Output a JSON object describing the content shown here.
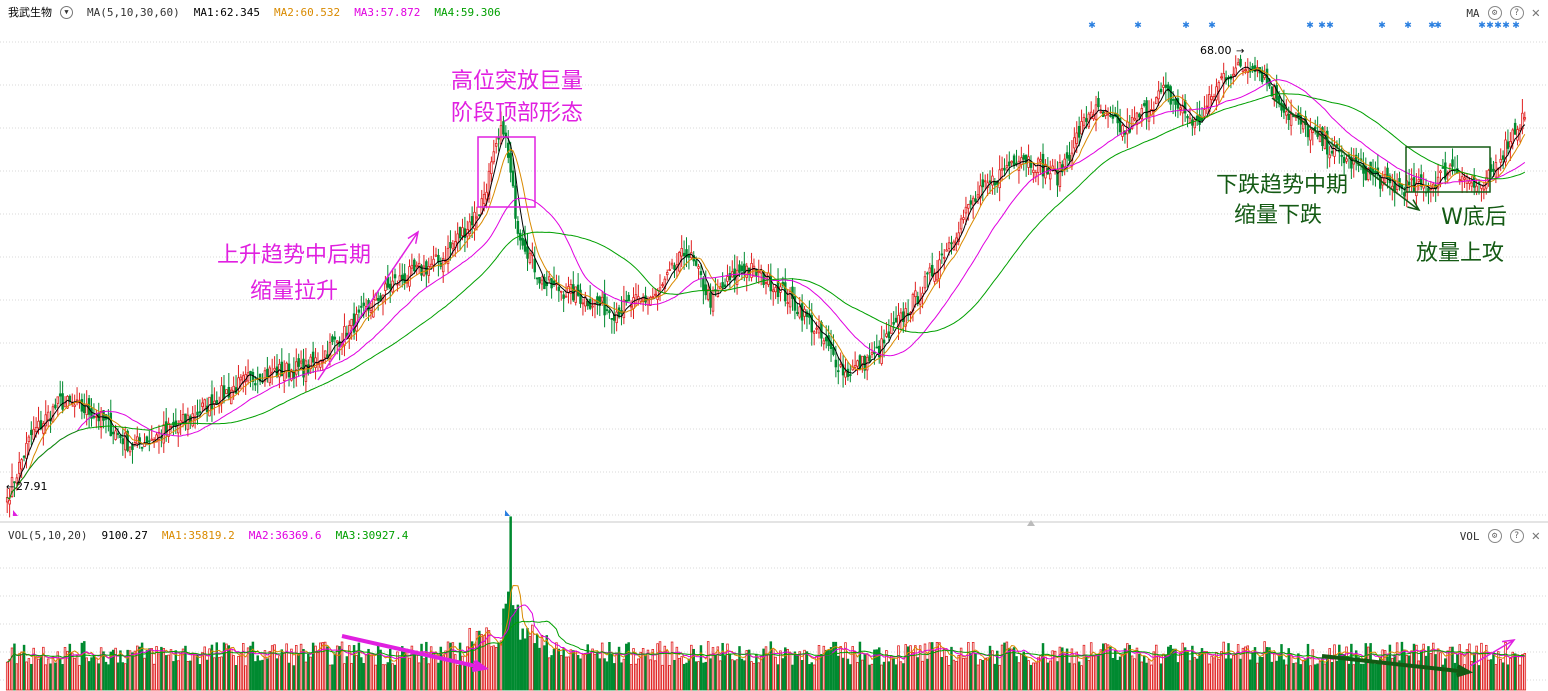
{
  "price_panel": {
    "stock_name": "我武生物",
    "indicator": "MA(5,10,30,60)",
    "ma_readings": [
      {
        "label": "MA1:62.345",
        "color": "#000000"
      },
      {
        "label": "MA2:60.532",
        "color": "#d98a00"
      },
      {
        "label": "MA3:57.872",
        "color": "#e000e0"
      },
      {
        "label": "MA4:59.306",
        "color": "#00a000"
      }
    ],
    "right_label": "MA",
    "high_marker": "68.00",
    "low_marker": "27.91"
  },
  "volume_panel": {
    "indicator": "VOL(5,10,20)",
    "current": "9100.27",
    "ma_readings": [
      {
        "label": "MA1:35819.2",
        "color": "#d98a00"
      },
      {
        "label": "MA2:36369.6",
        "color": "#e000e0"
      },
      {
        "label": "MA3:30927.4",
        "color": "#00a000"
      }
    ],
    "right_label": "VOL"
  },
  "annotations": {
    "top_peak": [
      "高位突放巨量",
      "阶段顶部形态"
    ],
    "uptrend": [
      "上升趋势中后期",
      "缩量拉升"
    ],
    "downtrend": [
      "下跌趋势中期",
      "缩量下跌"
    ],
    "w_bottom": [
      "W底后",
      "放量上攻"
    ]
  },
  "colors": {
    "up": "#e02020",
    "down": "#008a30",
    "ma5": "#000000",
    "ma10": "#d98a00",
    "ma30": "#e000e0",
    "ma60": "#00a000",
    "magenta_note": "#e020e0",
    "green_note": "#145a14",
    "grid": "#d8d8d8"
  },
  "chart_data": {
    "type": "candlestick",
    "symbol": "我武生物",
    "price_range": [
      26,
      70
    ],
    "price_path_keypoints": [
      [
        0,
        28.0
      ],
      [
        10,
        33.5
      ],
      [
        22,
        36.5
      ],
      [
        36,
        35.5
      ],
      [
        52,
        32.5
      ],
      [
        72,
        34.5
      ],
      [
        88,
        37.0
      ],
      [
        105,
        39.0
      ],
      [
        125,
        39.5
      ],
      [
        140,
        42.5
      ],
      [
        160,
        47.0
      ],
      [
        180,
        49.0
      ],
      [
        196,
        53.5
      ],
      [
        206,
        61.0
      ],
      [
        212,
        52.0
      ],
      [
        222,
        47.0
      ],
      [
        236,
        46.0
      ],
      [
        252,
        44.5
      ],
      [
        270,
        46.0
      ],
      [
        282,
        50.0
      ],
      [
        292,
        45.5
      ],
      [
        306,
        48.5
      ],
      [
        318,
        47.0
      ],
      [
        330,
        44.5
      ],
      [
        348,
        39.0
      ],
      [
        360,
        40.5
      ],
      [
        380,
        46.5
      ],
      [
        400,
        54.0
      ],
      [
        420,
        58.5
      ],
      [
        436,
        56.5
      ],
      [
        450,
        62.5
      ],
      [
        464,
        60.5
      ],
      [
        480,
        64.0
      ],
      [
        494,
        61.0
      ],
      [
        505,
        65.5
      ],
      [
        518,
        66.5
      ],
      [
        532,
        62.0
      ],
      [
        552,
        58.5
      ],
      [
        575,
        55.5
      ],
      [
        590,
        55.5
      ],
      [
        600,
        57.5
      ],
      [
        612,
        55.0
      ],
      [
        624,
        60.0
      ],
      [
        630,
        62.0
      ]
    ],
    "series": [
      {
        "name": "MA1",
        "period": 5,
        "last": 62.345
      },
      {
        "name": "MA2",
        "period": 10,
        "last": 60.532
      },
      {
        "name": "MA3",
        "period": 30,
        "last": 57.872
      },
      {
        "name": "MA4",
        "period": 60,
        "last": 59.306
      }
    ],
    "volume_series": [
      {
        "name": "MA1",
        "period": 5,
        "last": 35819.2
      },
      {
        "name": "MA2",
        "period": 10,
        "last": 36369.6
      },
      {
        "name": "MA3",
        "period": 20,
        "last": 30927.4
      }
    ],
    "volume_last": 9100.27,
    "volume_spike_index": 209
  }
}
